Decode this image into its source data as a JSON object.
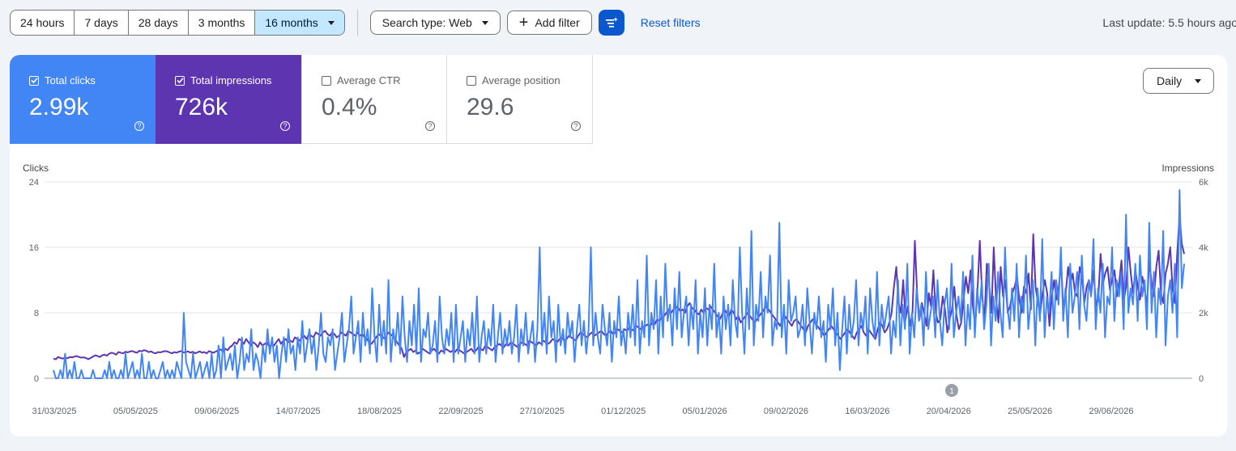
{
  "toolbar": {
    "ranges": [
      "24 hours",
      "7 days",
      "28 days",
      "3 months",
      "16 months"
    ],
    "active_range": "16 months",
    "search_type": "Search type: Web",
    "add_filter": "Add filter",
    "reset_filters": "Reset filters",
    "last_update": "Last update: 5.5 hours ago"
  },
  "metrics": [
    {
      "label": "Total clicks",
      "value": "2.99k",
      "checked": true,
      "color": "#4285f4"
    },
    {
      "label": "Total impressions",
      "value": "726k",
      "checked": true,
      "color": "#5e35b1"
    },
    {
      "label": "Average CTR",
      "value": "0.4%",
      "checked": false
    },
    {
      "label": "Average position",
      "value": "29.6",
      "checked": false
    }
  ],
  "granularity": "Daily",
  "annotation_badge": "1",
  "chart_data": {
    "type": "line",
    "left_axis_label": "Clicks",
    "right_axis_label": "Impressions",
    "left_ticks": [
      "24",
      "16",
      "8",
      "0"
    ],
    "right_ticks": [
      "6k",
      "4k",
      "2k",
      "0"
    ],
    "left_range": [
      0,
      24
    ],
    "right_range": [
      0,
      6000
    ],
    "x_labels": [
      "31/03/2025",
      "05/05/2025",
      "09/06/2025",
      "14/07/2025",
      "18/08/2025",
      "22/09/2025",
      "27/10/2025",
      "01/12/2025",
      "05/01/2026",
      "09/02/2026",
      "16/03/2026",
      "20/04/2026",
      "25/05/2026",
      "29/06/2026"
    ],
    "grid": true,
    "series": [
      {
        "name": "Clicks",
        "color": "#4285f4",
        "axis": "left",
        "values": [
          1,
          0,
          0,
          1,
          0,
          3,
          0,
          1,
          0,
          2,
          0,
          0,
          1,
          0,
          0,
          0,
          0,
          1,
          0,
          0,
          0,
          0,
          1,
          0,
          2,
          0,
          1,
          0,
          0,
          1,
          0,
          3,
          0,
          1,
          2,
          0,
          1,
          0,
          3,
          0,
          0,
          2,
          0,
          1,
          0,
          0,
          1,
          2,
          0,
          1,
          0,
          1,
          0,
          2,
          1,
          0,
          8,
          2,
          1,
          0,
          3,
          0,
          1,
          2,
          0,
          1,
          2,
          0,
          3,
          0,
          1,
          4,
          0,
          5,
          1,
          2,
          3,
          1,
          4,
          0,
          2,
          5,
          1,
          3,
          2,
          6,
          1,
          3,
          2,
          0,
          4,
          2,
          6,
          3,
          5,
          2,
          4,
          0,
          3,
          5,
          2,
          6,
          3,
          4,
          1,
          5,
          3,
          7,
          2,
          4,
          6,
          3,
          5,
          1,
          4,
          8,
          3,
          2,
          5,
          4,
          6,
          1,
          3,
          5,
          8,
          2,
          4,
          6,
          10,
          3,
          5,
          7,
          2,
          8,
          4,
          6,
          3,
          11,
          5,
          2,
          9,
          4,
          7,
          3,
          12,
          2,
          6,
          4,
          8,
          3,
          10,
          5,
          2,
          7,
          4,
          9,
          3,
          11,
          2,
          6,
          5,
          8,
          3,
          4,
          7,
          2,
          10,
          5,
          3,
          6,
          4,
          8,
          2,
          9,
          3,
          5,
          7,
          2,
          6,
          4,
          8,
          3,
          10,
          2,
          5,
          7,
          3,
          6,
          4,
          9,
          2,
          5,
          8,
          3,
          6,
          4,
          7,
          3,
          5,
          9,
          2,
          6,
          4,
          8,
          3,
          5,
          7,
          2,
          6,
          16,
          4,
          8,
          3,
          10,
          5,
          7,
          2,
          9,
          4,
          6,
          3,
          8,
          5,
          7,
          2,
          6,
          9,
          4,
          7,
          3,
          6,
          16,
          4,
          8,
          5,
          3,
          9,
          6,
          4,
          8,
          2,
          7,
          5,
          10,
          4,
          6,
          3,
          8,
          5,
          9,
          4,
          12,
          3,
          7,
          5,
          15,
          4,
          8,
          6,
          12,
          3,
          10,
          5,
          14,
          7,
          9,
          4,
          11,
          6,
          13,
          5,
          8,
          10,
          4,
          9,
          6,
          12,
          3,
          8,
          5,
          11,
          4,
          9,
          6,
          14,
          5,
          8,
          3,
          10,
          6,
          9,
          4,
          12,
          7,
          5,
          16,
          8,
          3,
          11,
          6,
          18,
          4,
          9,
          7,
          13,
          5,
          10,
          8,
          15,
          4,
          7,
          6,
          19,
          5,
          9,
          3,
          12,
          7,
          8,
          10,
          5,
          6,
          9,
          4,
          11,
          7,
          3,
          8,
          6,
          10,
          5,
          7,
          2,
          9,
          6,
          11,
          4,
          8,
          1,
          6,
          10,
          3,
          9,
          5,
          7,
          12,
          4,
          8,
          6,
          10,
          3,
          11,
          7,
          5,
          13,
          4,
          9,
          6,
          8,
          10,
          3,
          7,
          5,
          12,
          4,
          9,
          6,
          14,
          3,
          8,
          5,
          11,
          7,
          9,
          4,
          13,
          6,
          8,
          10,
          5,
          12,
          7,
          4,
          9,
          11,
          6,
          14,
          5,
          8,
          10,
          7,
          13,
          4,
          9,
          6,
          15,
          5,
          11,
          8,
          12,
          6,
          9,
          14,
          4,
          10,
          7,
          13,
          8,
          5,
          16,
          9,
          6,
          11,
          7,
          14,
          5,
          10,
          8,
          15,
          6,
          9,
          12,
          4,
          11,
          7,
          17,
          5,
          10,
          8,
          13,
          6,
          12,
          9,
          16,
          7,
          11,
          5,
          14,
          8,
          10,
          13,
          6,
          15,
          9,
          7,
          12,
          10,
          17,
          6,
          11,
          8,
          14,
          5,
          10,
          9,
          16,
          7,
          12,
          10,
          13,
          6,
          20,
          8,
          11,
          9,
          14,
          7,
          15,
          10,
          12,
          6,
          19,
          8,
          13,
          5,
          11,
          9,
          18,
          4,
          10,
          12,
          8,
          14,
          5,
          23,
          11,
          14
        ]
      },
      {
        "name": "Impressions",
        "color": "#5e35b1",
        "axis": "right",
        "values": [
          600,
          580,
          650,
          620,
          600,
          630,
          610,
          650,
          640,
          660,
          680,
          650,
          630,
          640,
          620,
          580,
          620,
          660,
          700,
          680,
          650,
          700,
          720,
          690,
          750,
          780,
          760,
          720,
          800,
          780,
          760,
          810,
          790,
          820,
          830,
          800,
          780,
          840,
          820,
          860,
          840,
          800,
          820,
          780,
          760,
          800,
          790,
          810,
          830,
          820,
          790,
          760,
          800,
          780,
          810,
          830,
          790,
          800,
          820,
          780,
          810,
          760,
          790,
          820,
          780,
          800,
          760,
          830,
          800,
          780,
          820,
          850,
          880,
          820,
          900,
          860,
          950,
          1000,
          1100,
          1050,
          1200,
          1150,
          1050,
          1200,
          1100,
          1000,
          1100,
          1050,
          950,
          1100,
          1000,
          1050,
          1100,
          950,
          1050,
          1000,
          1100,
          1200,
          1050,
          1150,
          1200,
          1100,
          1150,
          1100,
          1250,
          1200,
          1150,
          1250,
          1300,
          1200,
          1350,
          1300,
          1250,
          1400,
          1350,
          1300,
          1400,
          1450,
          1350,
          1300,
          1400,
          1350,
          1250,
          1300,
          1400,
          1350,
          1300,
          1450,
          1400,
          1350,
          1300,
          1400,
          1300,
          1350,
          1250,
          1200,
          1100,
          1050,
          1150,
          1250,
          1350,
          1300,
          1250,
          1200,
          1400,
          1350,
          1300,
          1200,
          1100,
          1000,
          900,
          650,
          800,
          850,
          900,
          800,
          850,
          750,
          800,
          900,
          850,
          800,
          750,
          850,
          900,
          800,
          750,
          850,
          800,
          900,
          850,
          800,
          850,
          800,
          900,
          850,
          800,
          750,
          800,
          850,
          900,
          800,
          850,
          950,
          900,
          850,
          1000,
          950,
          900,
          850,
          950,
          1000,
          1050,
          1000,
          950,
          1050,
          1000,
          1100,
          1050,
          1000,
          950,
          1050,
          1100,
          1050,
          1000,
          1150,
          1100,
          1050,
          1000,
          1100,
          1050,
          1150,
          1100,
          1050,
          1100,
          1200,
          1150,
          1100,
          1200,
          1250,
          1150,
          1200,
          1300,
          1250,
          1200,
          1150,
          1300,
          1400,
          1350,
          1300,
          1250,
          1350,
          1400,
          1300,
          1350,
          1400,
          1450,
          1350,
          1300,
          1400,
          1450,
          1350,
          1400,
          1500,
          1450,
          1400,
          1500,
          1450,
          1550,
          1500,
          1450,
          1600,
          1550,
          1500,
          1550,
          1600,
          1650,
          1600,
          1700,
          1650,
          1800,
          1750,
          1850,
          1900,
          2000,
          2100,
          2000,
          2100,
          2200,
          2150,
          2050,
          2100,
          2000,
          2200,
          2300,
          2150,
          2100,
          2000,
          1950,
          2100,
          2000,
          2150,
          2100,
          2200,
          2100,
          2000,
          1900,
          1800,
          1950,
          2100,
          2000,
          1900,
          2100,
          2000,
          1800,
          1900,
          1700,
          1800,
          1900,
          2000,
          1900,
          1800,
          1700,
          1800,
          1900,
          2000,
          2100,
          2200,
          2100,
          2000,
          1900,
          1800,
          1700,
          1600,
          1800,
          1900,
          1800,
          1700,
          1600,
          1750,
          1800,
          1700,
          1600,
          1500,
          1400,
          1600,
          1700,
          1800,
          1700,
          1600,
          1500,
          1400,
          1300,
          1400,
          1500,
          1600,
          1500,
          1400,
          1300,
          1200,
          1300,
          1400,
          1500,
          1400,
          1300,
          1200,
          1400,
          1500,
          1600,
          1400,
          1300,
          1500,
          1400,
          1300,
          1200,
          1500,
          1700,
          1600,
          1400,
          1500,
          1700,
          2000,
          2800,
          3400,
          2300,
          2000,
          3000,
          1800,
          2200,
          1600,
          2000,
          4200,
          2600,
          1800,
          2300,
          2000,
          1600,
          2600,
          2200,
          3300,
          2000,
          1700,
          1800,
          2500,
          2100,
          1400,
          1800,
          2100,
          2800,
          1900,
          1500,
          1700,
          2400,
          3100,
          2600,
          3300,
          2200,
          1600,
          2700,
          4200,
          2500,
          1800,
          3500,
          2900,
          2000,
          4000,
          2400,
          1700,
          3400,
          2500,
          3000,
          2000,
          2200,
          2600,
          2800,
          3100,
          2400,
          2000,
          2800,
          2600,
          3200,
          2100,
          4400,
          2800,
          2300,
          2000,
          2600,
          3000,
          2600,
          1600,
          2500,
          3000,
          2400,
          2800,
          3500,
          2100,
          2600,
          3400,
          2900,
          3200,
          2600,
          2500,
          3400,
          3100,
          2300,
          2800,
          3000,
          2600,
          3300,
          2200,
          2400,
          3800,
          2900,
          3200,
          3400,
          2700,
          3000,
          3300,
          2500,
          2900,
          3600,
          2400,
          2800,
          4000,
          3200,
          2600,
          3300,
          2800,
          2400,
          3100,
          2700,
          2200,
          3600,
          2900,
          2500,
          3400,
          3900,
          2600,
          2300,
          3200,
          3500,
          4000,
          2700,
          2300,
          3800,
          5000,
          4100,
          3800
        ]
      }
    ]
  }
}
